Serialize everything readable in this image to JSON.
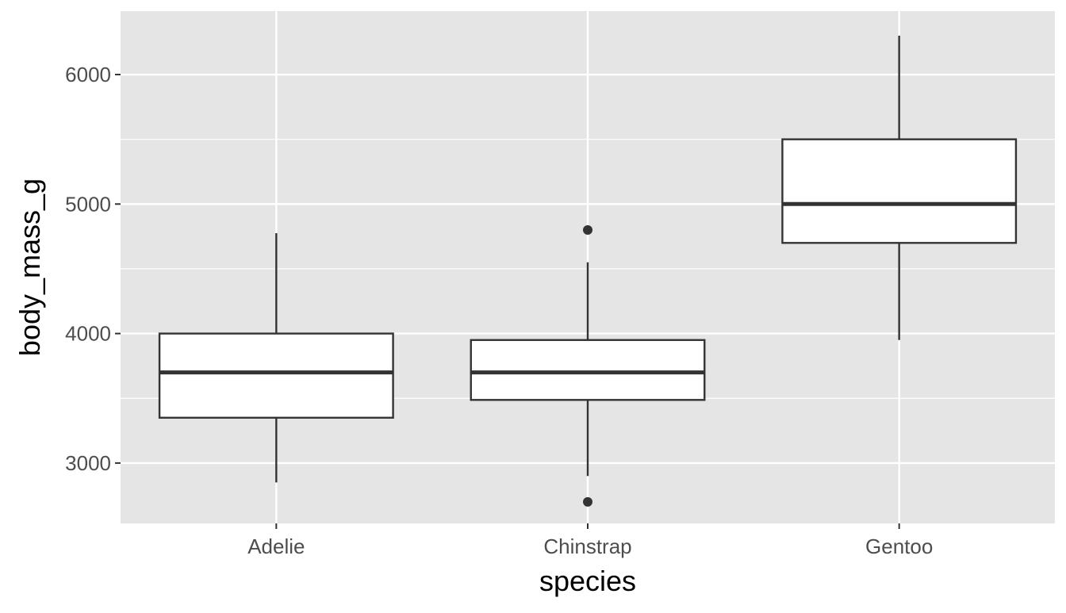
{
  "chart_data": {
    "type": "boxplot",
    "xlabel": "species",
    "ylabel": "body_mass_g",
    "categories": [
      "Adelie",
      "Chinstrap",
      "Gentoo"
    ],
    "ylim": [
      2534,
      6490
    ],
    "yticks": [
      3000,
      4000,
      5000,
      6000
    ],
    "yticks_minor": [
      3500,
      4500,
      5500
    ],
    "grid": true,
    "boxes": [
      {
        "name": "Adelie",
        "lower_whisker": 2850,
        "q1": 3350,
        "median": 3700,
        "q3": 4000,
        "upper_whisker": 4775,
        "outliers": []
      },
      {
        "name": "Chinstrap",
        "lower_whisker": 2900,
        "q1": 3487.5,
        "median": 3700,
        "q3": 3950,
        "upper_whisker": 4550,
        "outliers": [
          4800,
          2700
        ]
      },
      {
        "name": "Gentoo",
        "lower_whisker": 3950,
        "q1": 4700,
        "median": 5000,
        "q3": 5500,
        "upper_whisker": 6300,
        "outliers": []
      }
    ]
  },
  "colors": {
    "panel": "#e5e5e5",
    "grid": "#ffffff",
    "box_line": "#333333",
    "box_fill": "#ffffff",
    "tick_text": "#4d4d4d"
  }
}
